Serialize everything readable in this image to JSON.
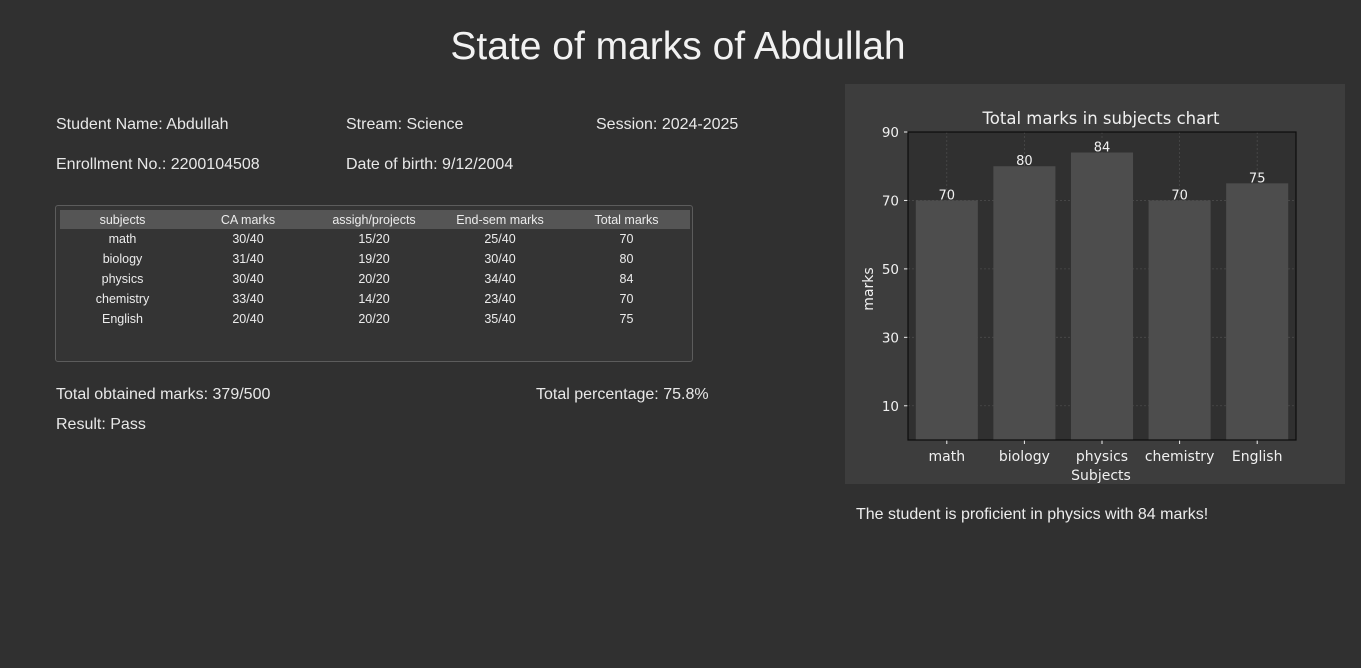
{
  "page": {
    "title": "State of marks of Abdullah"
  },
  "student": {
    "name": "Student Name: Abdullah",
    "stream": "Stream: Science",
    "session": "Session: 2024-2025",
    "enrollment": "Enrollment No.: 2200104508",
    "dob": "Date of birth: 9/12/2004"
  },
  "marks_table": {
    "headers": [
      "subjects",
      "CA marks",
      "assigh/projects",
      "End-sem marks",
      "Total marks"
    ],
    "rows": [
      [
        "math",
        "30/40",
        "15/20",
        "25/40",
        "70"
      ],
      [
        "biology",
        "31/40",
        "19/20",
        "30/40",
        "80"
      ],
      [
        "physics",
        "30/40",
        "20/20",
        "34/40",
        "84"
      ],
      [
        "chemistry",
        "33/40",
        "14/20",
        "23/40",
        "70"
      ],
      [
        "English",
        "20/40",
        "20/20",
        "35/40",
        "75"
      ]
    ]
  },
  "summary": {
    "total_obtained": "Total obtained marks: 379/500",
    "total_percentage": "Total percentage: 75.8%",
    "result": "Result: Pass"
  },
  "chart_data": {
    "type": "bar",
    "title": "Total marks in subjects chart",
    "xlabel": "Subjects",
    "ylabel": "marks",
    "categories": [
      "math",
      "biology",
      "physics",
      "chemistry",
      "English"
    ],
    "values": [
      70,
      80,
      84,
      70,
      75
    ],
    "ylim": [
      0,
      90
    ],
    "yticks": [
      10,
      30,
      50,
      70,
      90
    ],
    "grid": true,
    "bar_color": "#4d4d4d",
    "plot_background": "#303030",
    "panel_background": "#3d3d3d"
  },
  "chart_note": "The student is proficient in physics with 84 marks!"
}
